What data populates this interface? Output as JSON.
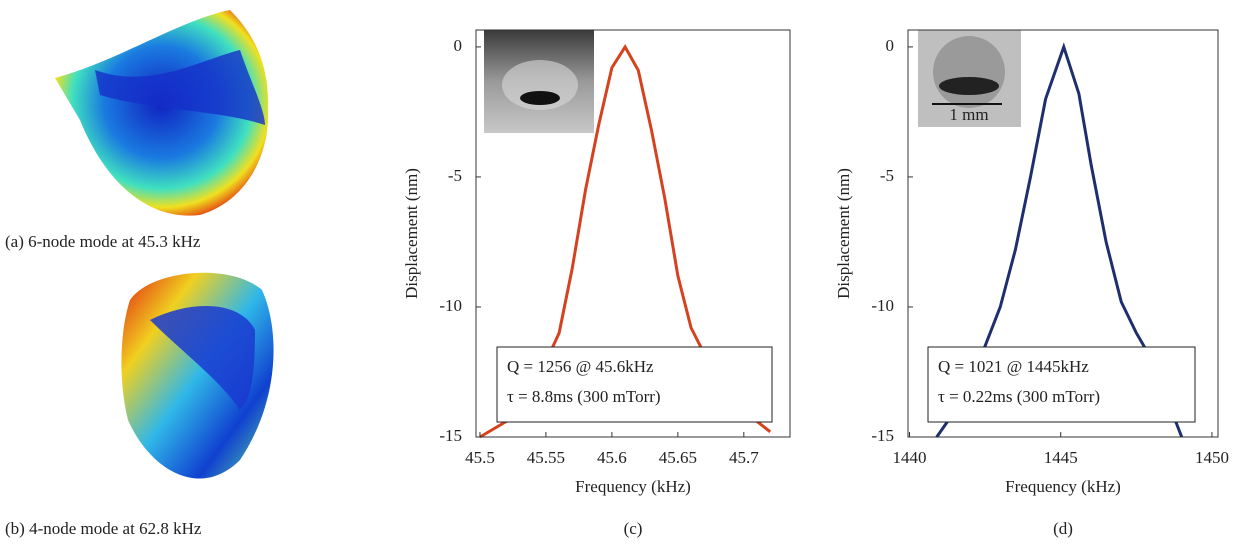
{
  "panels": [
    {
      "caption": "(a) 6-node mode at 45.3 kHz"
    },
    {
      "caption": "(b) 4-node mode at 62.8 kHz"
    }
  ],
  "chart_data": [
    {
      "type": "line",
      "caption": "(c)",
      "xlabel": "Frequency (kHz)",
      "ylabel": "Displacement (nm)",
      "x": [
        45.5,
        45.52,
        45.54,
        45.56,
        45.57,
        45.58,
        45.59,
        45.6,
        45.61,
        45.62,
        45.63,
        45.64,
        45.65,
        45.66,
        45.68,
        45.7,
        45.72
      ],
      "values": [
        -15,
        -14.4,
        -13.2,
        -11,
        -8.5,
        -5.5,
        -3,
        -0.8,
        0,
        -0.9,
        -3.2,
        -5.8,
        -8.8,
        -10.8,
        -12.8,
        -14,
        -14.8
      ],
      "color": "#d4421e",
      "xlim": [
        45.497,
        45.735
      ],
      "xticks": [
        45.5,
        45.55,
        45.6,
        45.65,
        45.7
      ],
      "ylim": [
        -15,
        0.65
      ],
      "yticks": [
        -15,
        -10,
        -5,
        0
      ],
      "annotations": [
        "Q = 1256 @ 45.6kHz",
        "τ  = 8.8ms (300 mTorr)"
      ]
    },
    {
      "type": "line",
      "caption": "(d)",
      "xlabel": "Frequency (kHz)",
      "ylabel": "Displacement (nm)",
      "x": [
        1440.9,
        1441.5,
        1442,
        1442.5,
        1443,
        1443.5,
        1444,
        1444.5,
        1445.1,
        1445.6,
        1446,
        1446.5,
        1447,
        1447.5,
        1448,
        1448.5,
        1449
      ],
      "values": [
        -15,
        -14,
        -12.8,
        -11.5,
        -10,
        -7.8,
        -5,
        -2,
        0,
        -1.8,
        -4.5,
        -7.5,
        -9.8,
        -11,
        -12,
        -13.5,
        -15
      ],
      "color": "#1f2f6e",
      "xlim": [
        1439.95,
        1450.2
      ],
      "xticks": [
        1440,
        1445,
        1450
      ],
      "ylim": [
        -15,
        0.65
      ],
      "yticks": [
        -15,
        -10,
        -5,
        0
      ],
      "annotations": [
        "Q = 1021 @ 1445kHz",
        "τ  = 0.22ms (300 mTorr)"
      ],
      "inset_label": "1 mm"
    }
  ]
}
